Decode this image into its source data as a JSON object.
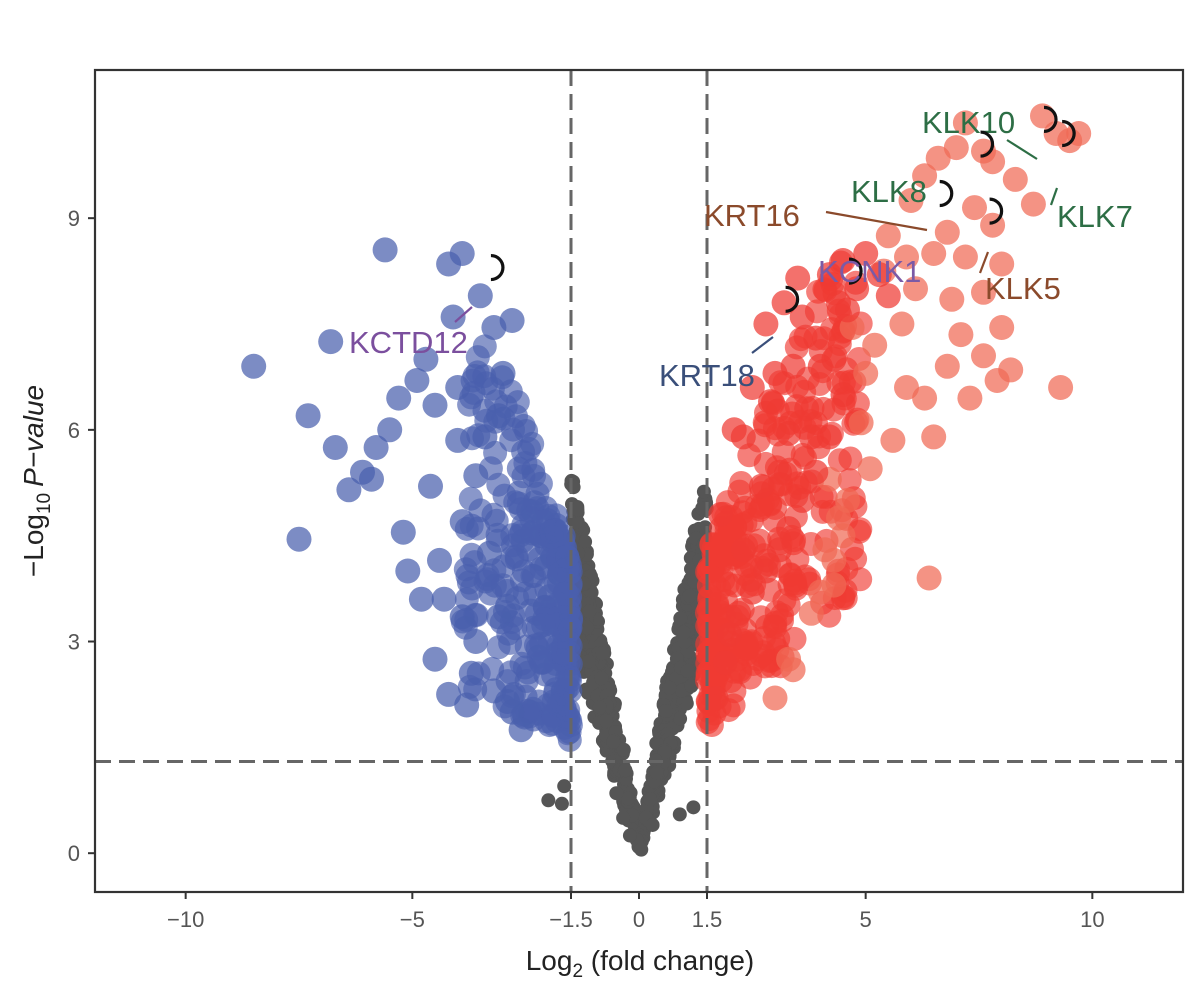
{
  "chart_data": {
    "type": "scatter",
    "subtype": "volcano",
    "title": "",
    "xlabel": {
      "prefix": "Log",
      "sub": "2",
      "suffix": " (fold change)"
    },
    "ylabel": {
      "prefix": "−Log",
      "sub": "10",
      "italic": "P−value"
    },
    "xlim": [
      -12,
      12
    ],
    "ylim": [
      -0.55,
      11.1
    ],
    "xticks": [
      -10,
      -5,
      -1.5,
      0,
      1.5,
      5,
      10
    ],
    "xtick_labels": [
      "−10",
      "−5",
      "−1.5",
      "0",
      "1.5",
      "5",
      "10"
    ],
    "yticks": [
      0,
      3,
      6,
      9
    ],
    "ytick_labels": [
      "0",
      "3",
      "6",
      "9"
    ],
    "thresholds": {
      "fold_change": [
        -1.5,
        1.5
      ],
      "p_value_line": 1.3
    },
    "colors": {
      "down": "#4a5fad",
      "up_strong": "#f06a54",
      "up": "#ef3a33",
      "not_significant": "#555555",
      "frame": "#333333",
      "guide": "#666666"
    },
    "grid": false,
    "legend": "none",
    "series": [
      {
        "group": "down",
        "points": [
          [
            -8.5,
            6.9
          ],
          [
            -7.5,
            4.45
          ],
          [
            -7.3,
            6.2
          ],
          [
            -6.8,
            7.25
          ],
          [
            -6.7,
            5.75
          ],
          [
            -6.4,
            5.15
          ],
          [
            -6.1,
            5.4
          ],
          [
            -5.8,
            5.75
          ],
          [
            -5.5,
            6.0
          ],
          [
            -5.2,
            4.55
          ],
          [
            -5.1,
            4.0
          ],
          [
            -4.8,
            3.6
          ],
          [
            -4.5,
            2.75
          ],
          [
            -4.2,
            2.25
          ],
          [
            -4.2,
            8.35
          ],
          [
            -4.1,
            7.6
          ],
          [
            -4.0,
            5.85
          ],
          [
            -3.9,
            3.35
          ],
          [
            -3.8,
            2.1
          ],
          [
            -3.7,
            2.55
          ],
          [
            -3.6,
            5.35
          ],
          [
            -3.3,
            4.25
          ],
          [
            -3.2,
            2.3
          ],
          [
            -3.1,
            6.2
          ],
          [
            -3.1,
            3.35
          ],
          [
            -2.9,
            2.15
          ],
          [
            -2.8,
            2.0
          ],
          [
            -2.6,
            1.75
          ],
          [
            -5.6,
            8.55
          ],
          [
            -4.9,
            6.7
          ],
          [
            -5.3,
            6.45
          ],
          [
            -3.9,
            8.5
          ],
          [
            -3.5,
            7.9
          ],
          [
            -3.2,
            7.45
          ],
          [
            -2.8,
            7.55
          ],
          [
            -4.7,
            7.0
          ],
          [
            -4.6,
            5.2
          ],
          [
            -5.9,
            5.3
          ],
          [
            -4.3,
            3.6
          ],
          [
            -3.6,
            3.0
          ],
          [
            -3.4,
            5.9
          ],
          [
            -4.4,
            4.15
          ],
          [
            -2.9,
            3.5
          ],
          [
            -3.0,
            6.8
          ],
          [
            -4.0,
            6.6
          ],
          [
            -3.9,
            4.7
          ],
          [
            -4.5,
            6.35
          ]
        ]
      },
      {
        "group": "up_strong",
        "points": [
          [
            3.0,
            2.2
          ],
          [
            3.3,
            2.75
          ],
          [
            4.0,
            3.7
          ],
          [
            4.1,
            4.3
          ],
          [
            4.3,
            3.8
          ],
          [
            4.3,
            4.15
          ],
          [
            4.5,
            4.5
          ],
          [
            4.4,
            4.75
          ],
          [
            4.6,
            5.0
          ],
          [
            5.1,
            5.45
          ],
          [
            5.0,
            6.8
          ],
          [
            4.7,
            7.45
          ],
          [
            5.6,
            5.85
          ],
          [
            5.9,
            6.6
          ],
          [
            6.3,
            6.45
          ],
          [
            6.5,
            5.9
          ],
          [
            6.8,
            6.9
          ],
          [
            7.1,
            7.35
          ],
          [
            6.9,
            7.85
          ],
          [
            7.3,
            6.45
          ],
          [
            7.6,
            7.05
          ],
          [
            8.0,
            7.45
          ],
          [
            8.2,
            6.85
          ],
          [
            7.9,
            6.7
          ],
          [
            9.3,
            6.6
          ],
          [
            6.4,
            3.9
          ],
          [
            5.4,
            8.25
          ],
          [
            5.9,
            8.45
          ],
          [
            6.0,
            9.25
          ],
          [
            6.3,
            9.6
          ],
          [
            6.6,
            9.85
          ],
          [
            7.0,
            10.0
          ],
          [
            7.2,
            10.35
          ],
          [
            7.6,
            9.95
          ],
          [
            7.8,
            8.9
          ],
          [
            8.0,
            8.35
          ],
          [
            7.4,
            9.15
          ],
          [
            7.8,
            9.8
          ],
          [
            8.3,
            9.55
          ],
          [
            8.7,
            9.2
          ],
          [
            8.9,
            10.45
          ],
          [
            9.2,
            10.2
          ],
          [
            9.5,
            10.1
          ],
          [
            9.7,
            10.2
          ],
          [
            6.8,
            8.8
          ],
          [
            6.5,
            8.5
          ],
          [
            7.2,
            8.45
          ],
          [
            7.6,
            7.95
          ],
          [
            5.5,
            8.75
          ],
          [
            6.1,
            8.0
          ],
          [
            5.2,
            7.2
          ],
          [
            4.9,
            6.1
          ],
          [
            5.8,
            7.5
          ],
          [
            3.4,
            2.6
          ],
          [
            3.8,
            3.4
          ],
          [
            4.2,
            5.3
          ]
        ]
      },
      {
        "group": "up",
        "points": [
          [
            1.7,
            2.2
          ],
          [
            1.9,
            2.7
          ],
          [
            2.0,
            3.1
          ],
          [
            2.2,
            3.4
          ],
          [
            2.5,
            3.7
          ],
          [
            2.8,
            4.0
          ],
          [
            3.1,
            4.3
          ],
          [
            3.3,
            4.6
          ],
          [
            3.6,
            5.0
          ],
          [
            3.9,
            5.4
          ],
          [
            4.2,
            5.9
          ],
          [
            4.5,
            6.5
          ],
          [
            3.2,
            7.8
          ],
          [
            3.5,
            8.15
          ],
          [
            4.2,
            8.2
          ],
          [
            4.5,
            8.4
          ],
          [
            5.0,
            8.5
          ],
          [
            5.3,
            8.2
          ],
          [
            2.8,
            7.5
          ],
          [
            3.0,
            6.8
          ],
          [
            3.4,
            6.9
          ],
          [
            3.9,
            7.3
          ],
          [
            4.3,
            7.0
          ],
          [
            2.3,
            5.9
          ],
          [
            2.7,
            5.2
          ],
          [
            3.1,
            5.4
          ],
          [
            3.7,
            6.3
          ],
          [
            4.0,
            6.9
          ],
          [
            4.6,
            7.7
          ],
          [
            2.9,
            6.4
          ],
          [
            3.6,
            7.6
          ],
          [
            4.4,
            7.8
          ],
          [
            1.8,
            4.8
          ],
          [
            2.1,
            6.0
          ],
          [
            2.5,
            6.6
          ],
          [
            3.8,
            5.9
          ],
          [
            3.3,
            5.95
          ],
          [
            4.8,
            8.0
          ],
          [
            5.5,
            7.9
          ],
          [
            2.3,
            4.3
          ]
        ]
      }
    ],
    "labeled_genes": [
      {
        "name": "KLK10",
        "x": 9.0,
        "y": 10.4,
        "color": "#2d6e45"
      },
      {
        "name": "KLK7",
        "x": 9.4,
        "y": 10.2,
        "color": "#2d6e45"
      },
      {
        "name": "KLK8",
        "x": 7.6,
        "y": 10.05,
        "color": "#2d6e45"
      },
      {
        "name": "KRT16",
        "x": 6.7,
        "y": 9.35,
        "color": "#8b4a2b"
      },
      {
        "name": "KLK5",
        "x": 7.8,
        "y": 9.1,
        "color": "#8b4a2b"
      },
      {
        "name": "KCNK1",
        "x": 4.7,
        "y": 8.25,
        "color": "#7b5aa6"
      },
      {
        "name": "KRT18",
        "x": 3.3,
        "y": 7.85,
        "color": "#3a4f7a"
      },
      {
        "name": "KCTD12",
        "x": -3.2,
        "y": 8.3,
        "color": "#7b4f9e"
      }
    ]
  }
}
